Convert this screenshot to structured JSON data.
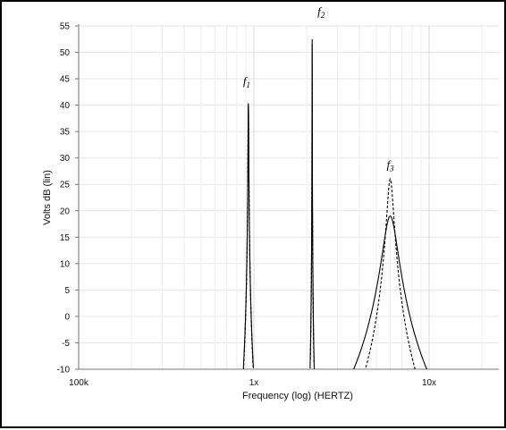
{
  "chart_data": {
    "type": "line",
    "xlabel": "Frequency (log) (HERTZ)",
    "ylabel": "Volts dB (lin)",
    "x_scale": "log",
    "x_ticks": [
      {
        "value": 100000,
        "label": "100k"
      },
      {
        "value": 1000000,
        "label": "1x"
      },
      {
        "value": 10000000,
        "label": "10x"
      }
    ],
    "xlim": [
      100000,
      25000000
    ],
    "ylim": [
      -10,
      55
    ],
    "y_ticks": [
      -10,
      -5,
      0,
      5,
      10,
      15,
      20,
      25,
      30,
      35,
      40,
      45,
      50,
      55
    ],
    "grid": true,
    "peak_labels": [
      {
        "main": "f",
        "sub": "1"
      },
      {
        "main": "f",
        "sub": "2"
      },
      {
        "main": "f",
        "sub": "3"
      }
    ],
    "series": [
      {
        "style": "solid",
        "peak_freq": 930000,
        "peak_db": 42.5,
        "width_decades": 0.0014,
        "slope_db_per_decade": 40
      },
      {
        "style": "dashed",
        "peak_freq": 930000,
        "peak_db": 42.0,
        "width_decades": 0.0014,
        "slope_db_per_decade": 40
      },
      {
        "style": "solid",
        "peak_freq": 2150000,
        "peak_db": 54.0,
        "width_decades": 0.0003,
        "slope_db_per_decade": 40
      },
      {
        "style": "dashed",
        "peak_freq": 2150000,
        "peak_db": 53.0,
        "width_decades": 0.0003,
        "slope_db_per_decade": 40
      },
      {
        "style": "solid",
        "peak_freq": 6000000,
        "peak_db": 19.0,
        "width_decades": 0.04,
        "slope_db_per_decade": 40
      },
      {
        "style": "dashed",
        "peak_freq": 6000000,
        "peak_db": 26.0,
        "width_decades": 0.018,
        "slope_db_per_decade": 40
      }
    ]
  }
}
